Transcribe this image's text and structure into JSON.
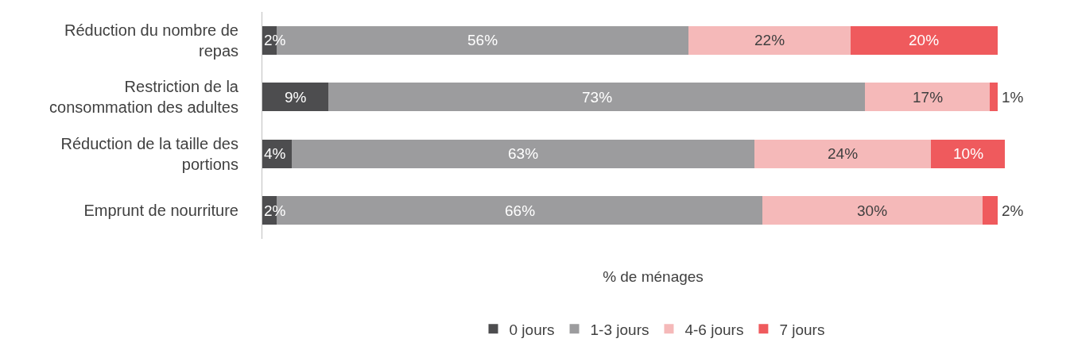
{
  "chart_data": {
    "type": "bar",
    "orientation": "horizontal",
    "stacked": true,
    "xlabel": "% de ménages",
    "legend": "bottom",
    "tick_labels": "y",
    "categories": [
      "Réduction du nombre de repas",
      "Restriction de la consommation des adultes",
      "Réduction de la taille des portions",
      "Emprunt de nourriture"
    ],
    "series": [
      {
        "name": "0 jours",
        "color": "#4d4d4f",
        "values": [
          2,
          9,
          4,
          2
        ],
        "value_labels": [
          "2%",
          "9%",
          "4%",
          "2%"
        ]
      },
      {
        "name": "1-3 jours",
        "color": "#9c9c9e",
        "values": [
          56,
          73,
          63,
          66
        ],
        "value_labels": [
          "56%",
          "73%",
          "63%",
          "66%"
        ]
      },
      {
        "name": "4-6 jours",
        "color": "#f5b9b9",
        "values": [
          22,
          17,
          24,
          30
        ],
        "value_labels": [
          "22%",
          "17%",
          "24%",
          "30%"
        ]
      },
      {
        "name": "7 jours",
        "color": "#ef5a5d",
        "values": [
          20,
          1,
          10,
          2
        ],
        "value_labels": [
          "20%",
          "1%",
          "10%",
          "2%"
        ]
      }
    ]
  }
}
